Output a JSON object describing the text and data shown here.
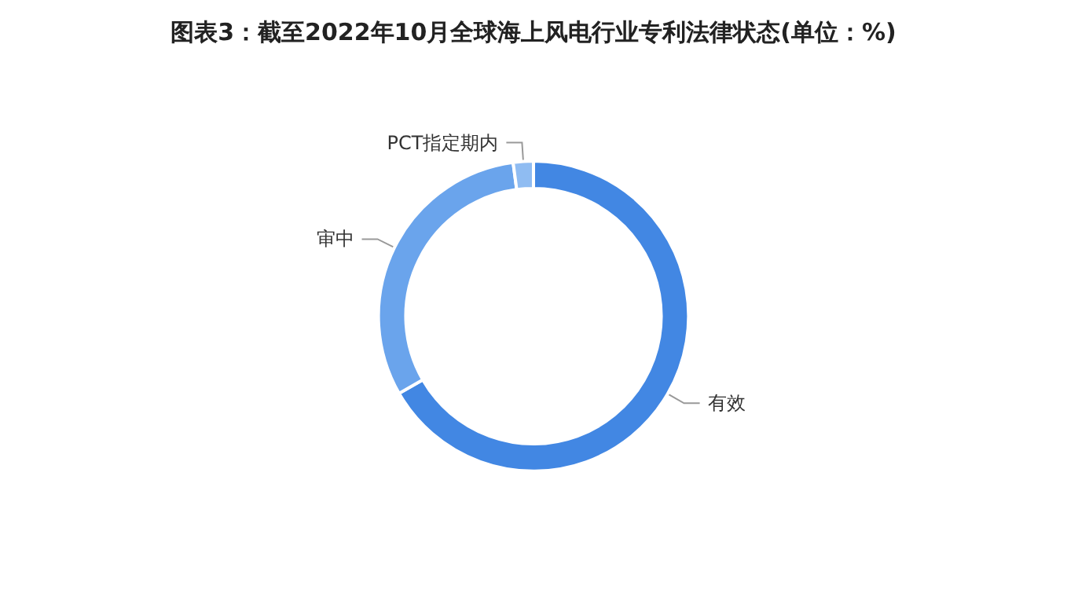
{
  "chart_data": {
    "type": "donut",
    "title": "图表3：截至2022年10月全球海上风电行业专利法律状态(单位：%)",
    "categories": [
      "有效",
      "审中",
      "PCT指定期内"
    ],
    "values": [
      66.7,
      31.2,
      2.1
    ],
    "colors": [
      "#4287e3",
      "#6aa4ec",
      "#8fbcf2"
    ],
    "legend": false
  }
}
